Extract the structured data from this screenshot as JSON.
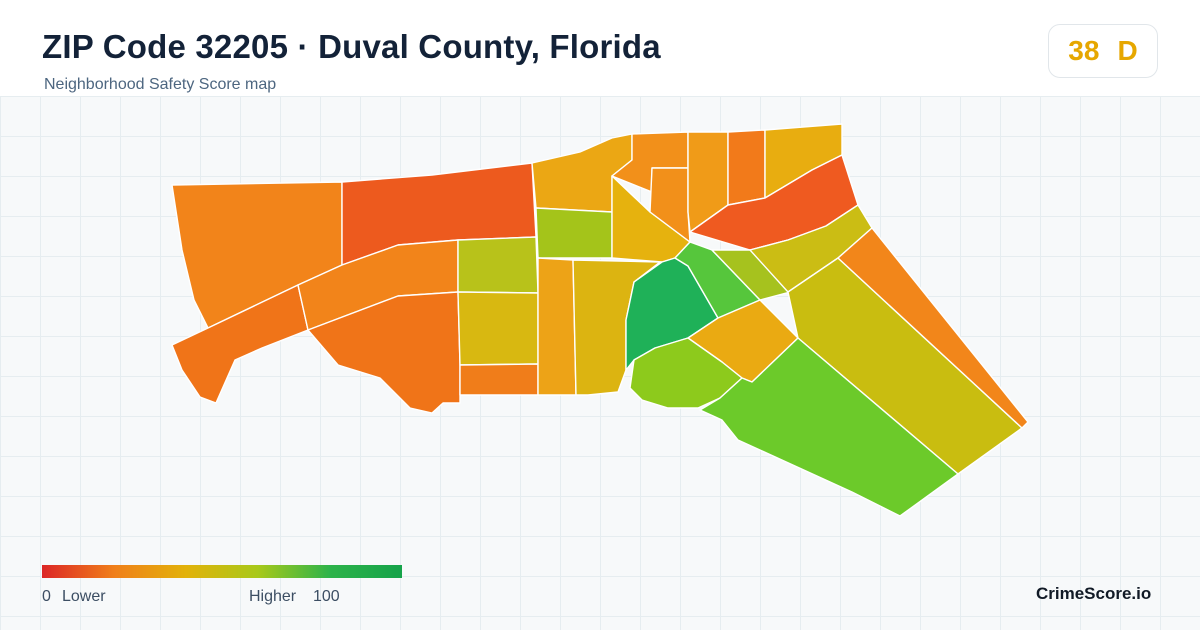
{
  "header": {
    "title": "ZIP Code 32205 · Duval County, Florida",
    "subtitle": "Neighborhood Safety Score map"
  },
  "score": {
    "value": "38",
    "grade": "D",
    "color": "#e6a700"
  },
  "legend": {
    "min_value": "0",
    "min_label": "Lower",
    "max_label": "Higher",
    "max_value": "100",
    "colors": [
      "#dc2626",
      "#f07f1a",
      "#e2b20a",
      "#a8c91a",
      "#2db34a",
      "#16a34a"
    ]
  },
  "brand": "CrimeScore.io"
}
